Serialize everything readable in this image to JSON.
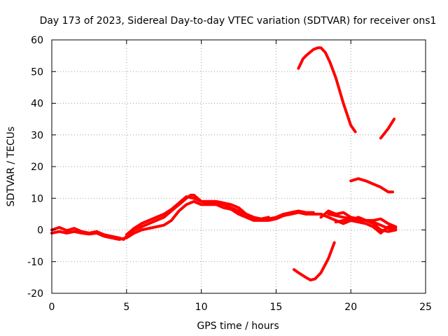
{
  "chart_data": {
    "type": "line",
    "title": "Day 173 of 2023, Sidereal Day-to-day VTEC variation (SDTVAR) for receiver ons1",
    "xlabel": "GPS time / hours",
    "ylabel": "SDTVAR / TECUs",
    "xlim": [
      0,
      25
    ],
    "ylim": [
      -20,
      60
    ],
    "xticks": [
      0,
      5,
      10,
      15,
      20,
      25
    ],
    "yticks": [
      -20,
      -10,
      0,
      10,
      20,
      30,
      40,
      50,
      60
    ],
    "grid": true,
    "line_color": "#ff0000",
    "series": [
      {
        "name": "track-main-1",
        "points": [
          [
            0,
            0
          ],
          [
            0.5,
            0.8
          ],
          [
            1,
            -0.2
          ],
          [
            1.5,
            0.5
          ],
          [
            2,
            -0.5
          ],
          [
            2.5,
            -1
          ],
          [
            3,
            -0.5
          ],
          [
            3.5,
            -1.5
          ],
          [
            4,
            -2
          ],
          [
            4.5,
            -2.5
          ],
          [
            4.8,
            -3
          ],
          [
            5,
            -2
          ],
          [
            5.5,
            0
          ],
          [
            6,
            1
          ],
          [
            6.5,
            2
          ],
          [
            7,
            3
          ],
          [
            7.5,
            4
          ],
          [
            8,
            6
          ],
          [
            8.5,
            8
          ],
          [
            9,
            10
          ],
          [
            9.3,
            11
          ],
          [
            9.5,
            11
          ],
          [
            10,
            9
          ],
          [
            10.5,
            8.5
          ],
          [
            11,
            8.5
          ],
          [
            11.5,
            8
          ],
          [
            12,
            7
          ],
          [
            12.5,
            6
          ],
          [
            13,
            4.5
          ],
          [
            13.5,
            3.5
          ],
          [
            14,
            3
          ],
          [
            14.5,
            3.5
          ],
          [
            15,
            4
          ],
          [
            15.5,
            5
          ],
          [
            16,
            5.5
          ],
          [
            16.5,
            6
          ],
          [
            17,
            5.5
          ],
          [
            17.5,
            5.5
          ]
        ]
      },
      {
        "name": "track-main-2",
        "points": [
          [
            0,
            -1
          ],
          [
            0.5,
            -0.5
          ],
          [
            1,
            -1
          ],
          [
            1.5,
            -0.5
          ],
          [
            2,
            -1
          ],
          [
            2.5,
            -1.3
          ],
          [
            3,
            -1
          ],
          [
            3.5,
            -2
          ],
          [
            4,
            -2.5
          ],
          [
            4.5,
            -3
          ],
          [
            5,
            -2.5
          ],
          [
            5.5,
            -1
          ],
          [
            6,
            0
          ],
          [
            6.5,
            0.5
          ],
          [
            7,
            1
          ],
          [
            7.5,
            1.5
          ],
          [
            8,
            3
          ],
          [
            8.5,
            6
          ],
          [
            9,
            8
          ],
          [
            9.5,
            9
          ],
          [
            10,
            8
          ],
          [
            10.5,
            8
          ],
          [
            11,
            8
          ],
          [
            11.5,
            7
          ],
          [
            12,
            6.5
          ],
          [
            12.5,
            5
          ],
          [
            13,
            4
          ],
          [
            13.5,
            3
          ],
          [
            14,
            3
          ],
          [
            14.5,
            3
          ],
          [
            15,
            3.5
          ],
          [
            15.5,
            4.5
          ],
          [
            16,
            5
          ],
          [
            16.5,
            5.5
          ],
          [
            17,
            5
          ],
          [
            17.5,
            5
          ]
        ]
      },
      {
        "name": "track-main-3",
        "points": [
          [
            5,
            -1.5
          ],
          [
            5.5,
            0.5
          ],
          [
            6,
            2
          ],
          [
            6.5,
            3
          ],
          [
            7,
            4
          ],
          [
            7.5,
            5
          ],
          [
            8,
            6.5
          ],
          [
            8.5,
            8.5
          ],
          [
            9,
            10.5
          ],
          [
            9.5,
            10
          ],
          [
            10,
            9
          ],
          [
            10.5,
            9
          ],
          [
            11,
            9
          ],
          [
            11.5,
            8.5
          ],
          [
            12,
            8
          ],
          [
            12.5,
            7
          ],
          [
            13,
            5
          ],
          [
            13.5,
            4
          ],
          [
            14,
            3.5
          ],
          [
            14.5,
            4
          ]
        ]
      },
      {
        "name": "track-tail-a",
        "points": [
          [
            18.5,
            5
          ],
          [
            19,
            4.5
          ],
          [
            19.5,
            4
          ],
          [
            20,
            3.5
          ],
          [
            20.5,
            3
          ],
          [
            21,
            3
          ],
          [
            21.5,
            2.5
          ],
          [
            22,
            1.5
          ],
          [
            22.5,
            0.5
          ],
          [
            23,
            0
          ]
        ]
      },
      {
        "name": "track-tail-b",
        "points": [
          [
            18,
            4
          ],
          [
            18.5,
            6
          ],
          [
            19,
            5
          ],
          [
            19.5,
            5.5
          ],
          [
            20,
            4
          ],
          [
            20.5,
            3.5
          ],
          [
            21,
            3
          ],
          [
            21.5,
            3
          ],
          [
            22,
            3.5
          ],
          [
            22.5,
            2
          ],
          [
            23,
            1
          ]
        ]
      },
      {
        "name": "track-tail-c",
        "points": [
          [
            19,
            2.5
          ],
          [
            19.5,
            3
          ],
          [
            20,
            3
          ],
          [
            20.5,
            2.5
          ],
          [
            21,
            2
          ],
          [
            21.5,
            1
          ],
          [
            22,
            -1
          ],
          [
            22.5,
            1
          ],
          [
            23,
            0.5
          ]
        ]
      },
      {
        "name": "track-tail-d",
        "points": [
          [
            17.5,
            5
          ],
          [
            18,
            5
          ],
          [
            18.5,
            4
          ],
          [
            19,
            3
          ],
          [
            19.5,
            2
          ],
          [
            20,
            3
          ],
          [
            20.5,
            4
          ],
          [
            21,
            3
          ],
          [
            21.5,
            2
          ],
          [
            22,
            0
          ],
          [
            22.5,
            -0.5
          ],
          [
            23,
            0
          ]
        ]
      },
      {
        "name": "track-high-arc",
        "points": [
          [
            16.5,
            51
          ],
          [
            16.8,
            54
          ],
          [
            17,
            55
          ],
          [
            17.5,
            57
          ],
          [
            17.8,
            57.5
          ],
          [
            18,
            57.5
          ],
          [
            18.3,
            56
          ],
          [
            18.6,
            53
          ],
          [
            19,
            48
          ],
          [
            19.5,
            40
          ],
          [
            20,
            33
          ],
          [
            20.3,
            31
          ]
        ]
      },
      {
        "name": "track-right-rise",
        "points": [
          [
            22,
            29
          ],
          [
            22.5,
            32
          ],
          [
            22.9,
            35
          ]
        ]
      },
      {
        "name": "track-mid-right",
        "points": [
          [
            20,
            15.5
          ],
          [
            20.5,
            16.2
          ],
          [
            21,
            15.5
          ],
          [
            21.5,
            14.5
          ],
          [
            22,
            13.5
          ],
          [
            22.5,
            12
          ],
          [
            22.8,
            12
          ]
        ]
      },
      {
        "name": "track-low-arc",
        "points": [
          [
            16.2,
            -12.5
          ],
          [
            16.5,
            -13.5
          ],
          [
            17,
            -15
          ],
          [
            17.3,
            -15.8
          ],
          [
            17.6,
            -15.5
          ],
          [
            18,
            -13.5
          ],
          [
            18.5,
            -9
          ],
          [
            18.9,
            -4
          ]
        ]
      }
    ]
  }
}
